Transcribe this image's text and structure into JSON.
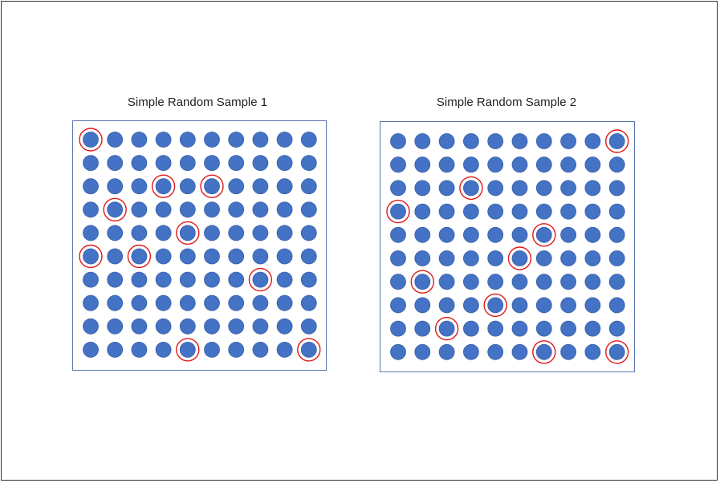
{
  "colors": {
    "dot": "#4472c4",
    "dot_outline": "#3b62a8",
    "highlight": "#e01919",
    "box_border": "#5a76ad"
  },
  "grid": {
    "rows": 10,
    "cols": 10
  },
  "panels": [
    {
      "title": "Simple Random Sample 1",
      "selected": [
        [
          0,
          0
        ],
        [
          2,
          3
        ],
        [
          2,
          5
        ],
        [
          3,
          1
        ],
        [
          4,
          4
        ],
        [
          5,
          0
        ],
        [
          5,
          2
        ],
        [
          6,
          7
        ],
        [
          9,
          4
        ],
        [
          9,
          9
        ]
      ]
    },
    {
      "title": "Simple Random Sample 2",
      "selected": [
        [
          0,
          9
        ],
        [
          2,
          3
        ],
        [
          3,
          0
        ],
        [
          4,
          6
        ],
        [
          5,
          5
        ],
        [
          6,
          1
        ],
        [
          7,
          4
        ],
        [
          8,
          2
        ],
        [
          9,
          6
        ],
        [
          9,
          9
        ]
      ]
    }
  ]
}
